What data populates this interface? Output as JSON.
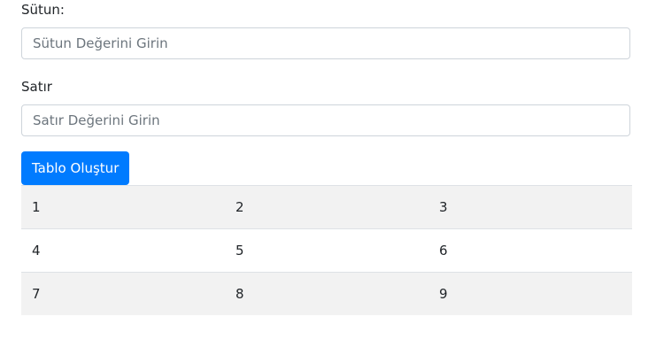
{
  "form": {
    "column_label": "Sütun:",
    "column_placeholder": "Sütun Değerini Girin",
    "row_label": "Satır",
    "row_placeholder": "Satır Değerini Girin",
    "button_label": "Tablo Oluştur",
    "button_color": "#007bff"
  },
  "table": {
    "rows": [
      [
        "1",
        "2",
        "3"
      ],
      [
        "4",
        "5",
        "6"
      ],
      [
        "7",
        "8",
        "9"
      ]
    ]
  }
}
